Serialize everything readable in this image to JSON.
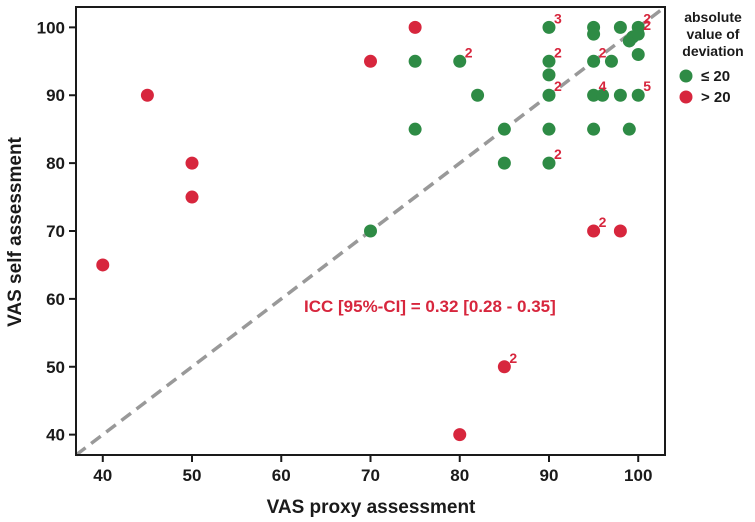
{
  "chart_data": {
    "type": "scatter",
    "xlabel": "VAS proxy assessment",
    "ylabel": "VAS self assessment",
    "xlim": [
      37,
      103
    ],
    "ylim": [
      37,
      103
    ],
    "xticks": [
      40,
      50,
      60,
      70,
      80,
      90,
      100
    ],
    "yticks": [
      40,
      50,
      60,
      70,
      80,
      90,
      100
    ],
    "reference_line": "identity",
    "annotation": "ICC [95%-CI] = 0.32 [0.28 - 0.35]",
    "legend": {
      "title_lines": [
        "absolute",
        "value of",
        "deviation"
      ],
      "entries": [
        {
          "label": "≤ 20",
          "color": "#2e8b45"
        },
        {
          "label": "> 20",
          "color": "#d7263d"
        }
      ]
    },
    "series": [
      {
        "name": "≤ 20",
        "color": "#2e8b45",
        "points": [
          {
            "x": 70,
            "y": 70
          },
          {
            "x": 75,
            "y": 95
          },
          {
            "x": 75,
            "y": 85
          },
          {
            "x": 80,
            "y": 95,
            "count": "2"
          },
          {
            "x": 82,
            "y": 90
          },
          {
            "x": 85,
            "y": 85
          },
          {
            "x": 85,
            "y": 80
          },
          {
            "x": 90,
            "y": 100,
            "count": "3"
          },
          {
            "x": 90,
            "y": 95,
            "count": "2"
          },
          {
            "x": 90,
            "y": 93
          },
          {
            "x": 90,
            "y": 90,
            "count": "2"
          },
          {
            "x": 90,
            "y": 85
          },
          {
            "x": 90,
            "y": 80,
            "count": "2"
          },
          {
            "x": 95,
            "y": 100
          },
          {
            "x": 95,
            "y": 99
          },
          {
            "x": 95,
            "y": 95,
            "count": "2"
          },
          {
            "x": 95,
            "y": 90,
            "count": "4"
          },
          {
            "x": 95,
            "y": 85
          },
          {
            "x": 96,
            "y": 90
          },
          {
            "x": 97,
            "y": 95
          },
          {
            "x": 98,
            "y": 100
          },
          {
            "x": 98,
            "y": 90
          },
          {
            "x": 99,
            "y": 98
          },
          {
            "x": 99,
            "y": 85
          },
          {
            "x": 99.4,
            "y": 98.6
          },
          {
            "x": 100,
            "y": 100,
            "count": "2"
          },
          {
            "x": 100,
            "y": 99,
            "count": "2"
          },
          {
            "x": 100,
            "y": 96
          },
          {
            "x": 100,
            "y": 90,
            "count": "5"
          }
        ]
      },
      {
        "name": "> 20",
        "color": "#d7263d",
        "points": [
          {
            "x": 40,
            "y": 65
          },
          {
            "x": 45,
            "y": 90
          },
          {
            "x": 50,
            "y": 80
          },
          {
            "x": 50,
            "y": 75
          },
          {
            "x": 70,
            "y": 95
          },
          {
            "x": 75,
            "y": 100
          },
          {
            "x": 80,
            "y": 40
          },
          {
            "x": 85,
            "y": 50,
            "count": "2"
          },
          {
            "x": 95,
            "y": 70,
            "count": "2"
          },
          {
            "x": 98,
            "y": 70
          }
        ]
      }
    ]
  },
  "colors": {
    "green": "#2e8b45",
    "red": "#d7263d",
    "reference_line": "#999999",
    "count_label": "#d7263d"
  }
}
